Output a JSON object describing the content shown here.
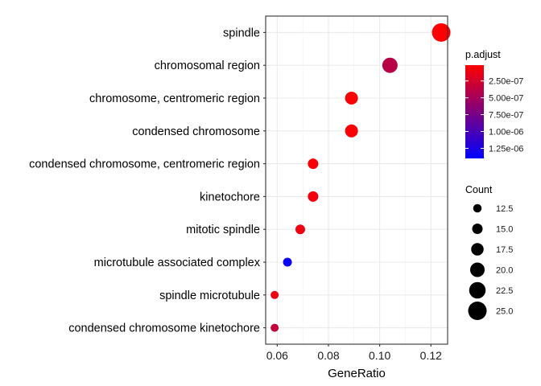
{
  "chart_data": {
    "type": "scatter",
    "xlabel": "GeneRatio",
    "ylabel": "",
    "xlim": [
      0.0555,
      0.1265
    ],
    "x_ticks": [
      0.06,
      0.08,
      0.1,
      0.12
    ],
    "x_tick_labels": [
      "0.06",
      "0.08",
      "0.10",
      "0.12"
    ],
    "grid": true,
    "categories": [
      "spindle",
      "chromosomal region",
      "chromosome, centromeric region",
      "condensed chromosome",
      "condensed chromosome, centromeric region",
      "kinetochore",
      "mitotic spindle",
      "microtubule associated complex",
      "spindle microtubule",
      "condensed chromosome kinetochore"
    ],
    "points": [
      {
        "category": "spindle",
        "gene_ratio": 0.124,
        "count": 25,
        "p_adjust": 2e-08
      },
      {
        "category": "chromosomal region",
        "gene_ratio": 0.104,
        "count": 21,
        "p_adjust": 4e-07
      },
      {
        "category": "chromosome, centromeric region",
        "gene_ratio": 0.089,
        "count": 18,
        "p_adjust": 5e-08
      },
      {
        "category": "condensed chromosome",
        "gene_ratio": 0.089,
        "count": 18,
        "p_adjust": 5e-08
      },
      {
        "category": "condensed chromosome, centromeric region",
        "gene_ratio": 0.074,
        "count": 15,
        "p_adjust": 6e-08
      },
      {
        "category": "kinetochore",
        "gene_ratio": 0.074,
        "count": 15,
        "p_adjust": 8e-08
      },
      {
        "category": "mitotic spindle",
        "gene_ratio": 0.069,
        "count": 14,
        "p_adjust": 1e-07
      },
      {
        "category": "microtubule associated complex",
        "gene_ratio": 0.064,
        "count": 13,
        "p_adjust": 1.35e-06
      },
      {
        "category": "spindle microtubule",
        "gene_ratio": 0.059,
        "count": 12,
        "p_adjust": 1.2e-07
      },
      {
        "category": "condensed chromosome kinetochore",
        "gene_ratio": 0.059,
        "count": 12,
        "p_adjust": 3.5e-07
      }
    ],
    "color_legend": {
      "title": "p.adjust",
      "range": [
        1.5e-08,
        1.4e-06
      ],
      "low_color": "#FF0000",
      "high_color": "#0000FF",
      "ticks": [
        2.5e-07,
        5e-07,
        7.5e-07,
        1e-06,
        1.25e-06
      ],
      "tick_labels": [
        "2.50e-07",
        "5.00e-07",
        "7.50e-07",
        "1.00e-06",
        "1.25e-06"
      ]
    },
    "size_legend": {
      "title": "Count",
      "values": [
        12.5,
        15.0,
        17.5,
        20.0,
        22.5,
        25.0
      ],
      "labels": [
        "12.5",
        "15.0",
        "17.5",
        "20.0",
        "22.5",
        "25.0"
      ],
      "count_range": [
        12,
        25
      ]
    },
    "legend_position": "right"
  }
}
